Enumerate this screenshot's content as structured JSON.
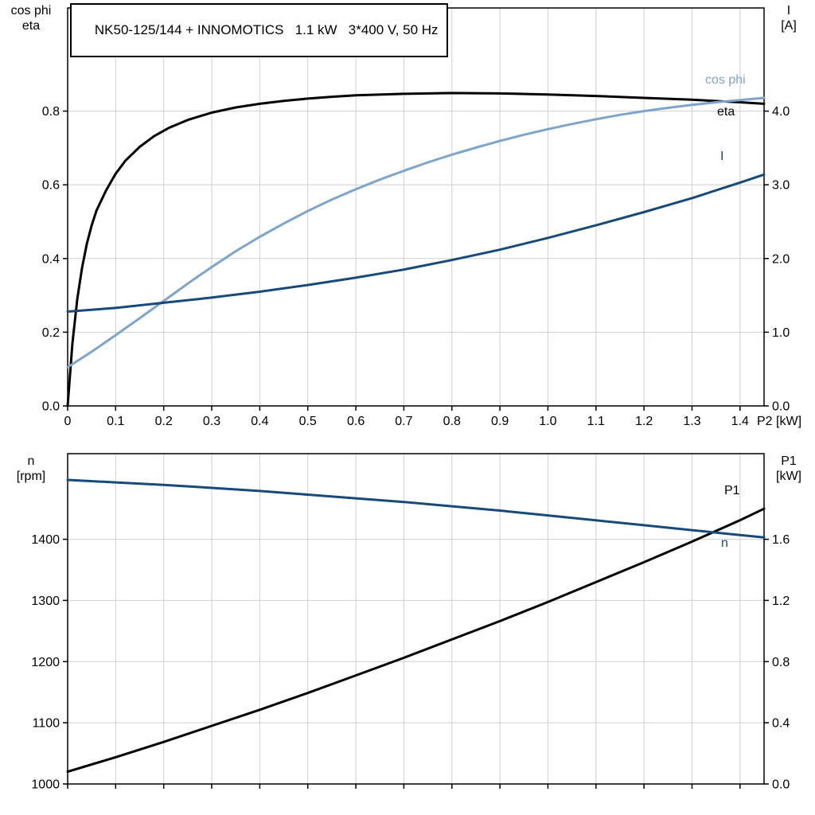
{
  "colors": {
    "grid": "#cfcfcf",
    "axis": "#000000",
    "light_blue": "#7fa4c9",
    "dark_blue": "#17497a",
    "black": "#000000"
  },
  "chart_data": [
    {
      "type": "line",
      "title": "NK50-125/144 + INNOMOTICS   1.1 kW   3*400 V, 50 Hz",
      "grid": true,
      "x_axis": {
        "label": "P2 [kW]",
        "min": 0,
        "max": 1.45,
        "ticks": [
          0,
          0.1,
          0.2,
          0.3,
          0.4,
          0.5,
          0.6,
          0.7,
          0.8,
          0.9,
          1.0,
          1.1,
          1.2,
          1.3,
          1.4
        ],
        "tick_labels": [
          "0",
          "0.1",
          "0.2",
          "0.3",
          "0.4",
          "0.5",
          "0.6",
          "0.7",
          "0.8",
          "0.9",
          "1.0",
          "1.1",
          "1.2",
          "1.3",
          "1.4"
        ]
      },
      "left_axis": {
        "label_lines": [
          "cos phi",
          "eta"
        ],
        "min": 0,
        "max": 1.08,
        "ticks": [
          0,
          0.2,
          0.4,
          0.6,
          0.8
        ],
        "tick_labels": [
          "0.0",
          "0.2",
          "0.4",
          "0.6",
          "0.8"
        ]
      },
      "right_axis": {
        "label_lines": [
          "I",
          "[A]"
        ],
        "min": 0,
        "max": 5.4,
        "ticks": [
          0,
          1,
          2,
          3,
          4
        ],
        "tick_labels": [
          "0.0",
          "1.0",
          "2.0",
          "3.0",
          "4.0"
        ]
      },
      "series": [
        {
          "name": "eta",
          "axis": "left",
          "color": "#000000",
          "points": [
            [
              0,
              0
            ],
            [
              0.01,
              0.17
            ],
            [
              0.02,
              0.29
            ],
            [
              0.03,
              0.375
            ],
            [
              0.04,
              0.44
            ],
            [
              0.05,
              0.49
            ],
            [
              0.06,
              0.53
            ],
            [
              0.08,
              0.585
            ],
            [
              0.1,
              0.63
            ],
            [
              0.12,
              0.665
            ],
            [
              0.15,
              0.703
            ],
            [
              0.18,
              0.732
            ],
            [
              0.21,
              0.754
            ],
            [
              0.25,
              0.776
            ],
            [
              0.3,
              0.796
            ],
            [
              0.35,
              0.81
            ],
            [
              0.4,
              0.82
            ],
            [
              0.45,
              0.828
            ],
            [
              0.5,
              0.834
            ],
            [
              0.55,
              0.839
            ],
            [
              0.6,
              0.843
            ],
            [
              0.7,
              0.847
            ],
            [
              0.8,
              0.849
            ],
            [
              0.9,
              0.848
            ],
            [
              1.0,
              0.845
            ],
            [
              1.1,
              0.841
            ],
            [
              1.2,
              0.836
            ],
            [
              1.3,
              0.831
            ],
            [
              1.4,
              0.824
            ],
            [
              1.45,
              0.82
            ]
          ]
        },
        {
          "name": "cos phi",
          "axis": "left",
          "color": "#7fa4c9",
          "points": [
            [
              0,
              0.105
            ],
            [
              0.05,
              0.147
            ],
            [
              0.1,
              0.192
            ],
            [
              0.15,
              0.238
            ],
            [
              0.2,
              0.285
            ],
            [
              0.25,
              0.332
            ],
            [
              0.3,
              0.377
            ],
            [
              0.35,
              0.42
            ],
            [
              0.4,
              0.459
            ],
            [
              0.45,
              0.495
            ],
            [
              0.5,
              0.529
            ],
            [
              0.55,
              0.56
            ],
            [
              0.6,
              0.588
            ],
            [
              0.65,
              0.614
            ],
            [
              0.7,
              0.638
            ],
            [
              0.75,
              0.661
            ],
            [
              0.8,
              0.682
            ],
            [
              0.85,
              0.701
            ],
            [
              0.9,
              0.719
            ],
            [
              0.95,
              0.736
            ],
            [
              1.0,
              0.751
            ],
            [
              1.05,
              0.765
            ],
            [
              1.1,
              0.778
            ],
            [
              1.15,
              0.79
            ],
            [
              1.2,
              0.8
            ],
            [
              1.25,
              0.809
            ],
            [
              1.3,
              0.817
            ],
            [
              1.35,
              0.824
            ],
            [
              1.4,
              0.83
            ],
            [
              1.45,
              0.836
            ]
          ]
        },
        {
          "name": "I",
          "axis": "right",
          "color": "#17497a",
          "points": [
            [
              0,
              1.28
            ],
            [
              0.1,
              1.33
            ],
            [
              0.2,
              1.4
            ],
            [
              0.3,
              1.47
            ],
            [
              0.4,
              1.55
            ],
            [
              0.5,
              1.64
            ],
            [
              0.6,
              1.74
            ],
            [
              0.7,
              1.85
            ],
            [
              0.8,
              1.98
            ],
            [
              0.9,
              2.12
            ],
            [
              1.0,
              2.28
            ],
            [
              1.1,
              2.45
            ],
            [
              1.2,
              2.63
            ],
            [
              1.3,
              2.82
            ],
            [
              1.4,
              3.03
            ],
            [
              1.45,
              3.14
            ]
          ]
        }
      ]
    },
    {
      "type": "line",
      "title": "",
      "grid": true,
      "x_axis": {
        "label": "",
        "min": 0,
        "max": 1.45,
        "ticks": [
          0,
          0.1,
          0.2,
          0.3,
          0.4,
          0.5,
          0.6,
          0.7,
          0.8,
          0.9,
          1.0,
          1.1,
          1.2,
          1.3,
          1.4
        ],
        "tick_labels": []
      },
      "left_axis": {
        "label_lines": [
          "n",
          "[rpm]"
        ],
        "min": 1000,
        "max": 1540,
        "ticks": [
          1000,
          1100,
          1200,
          1300,
          1400
        ],
        "tick_labels": [
          "1000",
          "1100",
          "1200",
          "1300",
          "1400"
        ]
      },
      "right_axis": {
        "label_lines": [
          "P1",
          "[kW]"
        ],
        "min": 0,
        "max": 2.16,
        "ticks": [
          0,
          0.4,
          0.8,
          1.2,
          1.6
        ],
        "tick_labels": [
          "0.0",
          "0.4",
          "0.8",
          "1.2",
          "1.6"
        ]
      },
      "series": [
        {
          "name": "P1",
          "axis": "right",
          "color": "#000000",
          "points": [
            [
              0,
              0.08
            ],
            [
              0.1,
              0.175
            ],
            [
              0.2,
              0.275
            ],
            [
              0.3,
              0.38
            ],
            [
              0.4,
              0.485
            ],
            [
              0.5,
              0.595
            ],
            [
              0.6,
              0.71
            ],
            [
              0.7,
              0.825
            ],
            [
              0.8,
              0.945
            ],
            [
              0.9,
              1.065
            ],
            [
              1.0,
              1.19
            ],
            [
              1.1,
              1.32
            ],
            [
              1.2,
              1.45
            ],
            [
              1.3,
              1.585
            ],
            [
              1.4,
              1.725
            ],
            [
              1.45,
              1.8
            ]
          ]
        },
        {
          "name": "n",
          "axis": "left",
          "color": "#17497a",
          "points": [
            [
              0,
              1497
            ],
            [
              0.1,
              1493
            ],
            [
              0.2,
              1489
            ],
            [
              0.3,
              1484
            ],
            [
              0.4,
              1479
            ],
            [
              0.5,
              1473
            ],
            [
              0.6,
              1467
            ],
            [
              0.7,
              1461
            ],
            [
              0.8,
              1454
            ],
            [
              0.9,
              1447
            ],
            [
              1.0,
              1439
            ],
            [
              1.1,
              1431
            ],
            [
              1.2,
              1423
            ],
            [
              1.3,
              1415
            ],
            [
              1.4,
              1407
            ],
            [
              1.45,
              1403
            ]
          ]
        }
      ]
    }
  ]
}
